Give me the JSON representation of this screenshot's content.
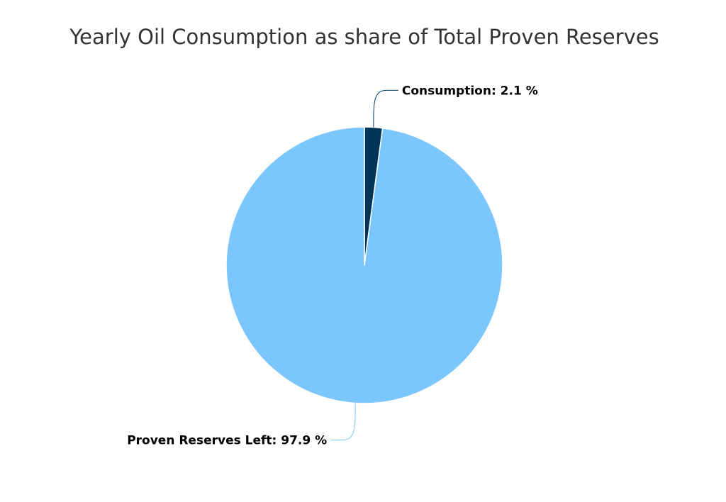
{
  "chart_data": {
    "type": "pie",
    "title": "Yearly Oil Consumption as share of Total Proven Reserves",
    "label_unit": "%",
    "slices": [
      {
        "label": "Consumption",
        "value": 2.1,
        "color": "#003559"
      },
      {
        "label": "Proven Reserves Left",
        "value": 97.9,
        "color": "#7cc6fe"
      }
    ],
    "start_angle_deg": 0,
    "legend": "none"
  }
}
